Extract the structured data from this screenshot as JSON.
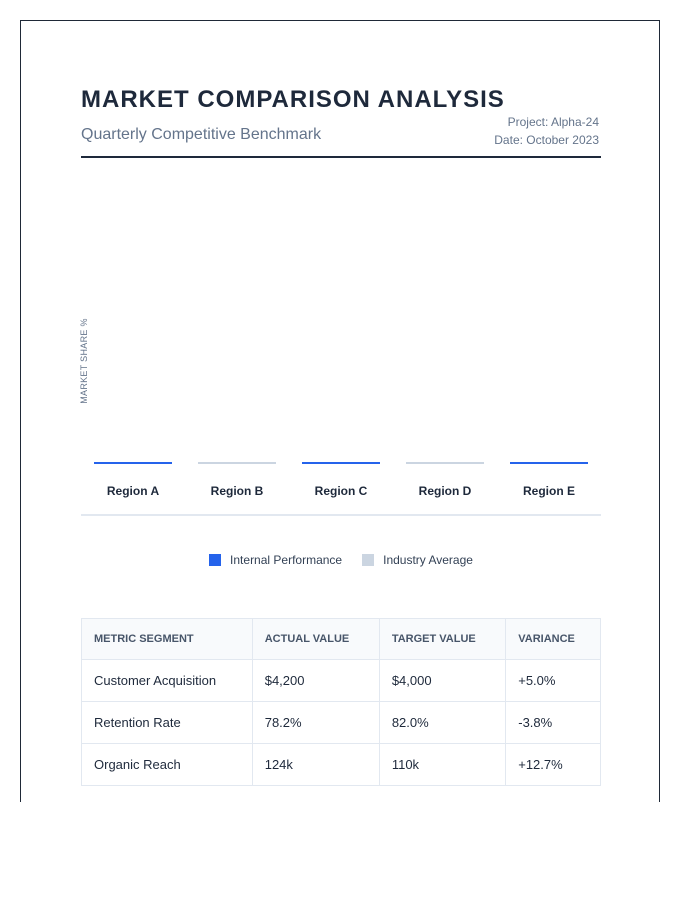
{
  "header": {
    "title": "MARKET COMPARISON ANALYSIS",
    "subtitle": "Quarterly Competitive Benchmark",
    "project": "Project: Alpha-24",
    "date": "Date: October 2023"
  },
  "colors": {
    "internal": "#2563eb",
    "industry": "#cbd5e1",
    "positive": "#059669",
    "negative": "#dc2626"
  },
  "chart_data": {
    "type": "bar",
    "ylabel": "MARKET SHARE %",
    "categories": [
      "Region A",
      "Region B",
      "Region C",
      "Region D",
      "Region E"
    ],
    "series": [
      {
        "name": "Internal Performance",
        "values": [
          0,
          null,
          0,
          null,
          0
        ]
      },
      {
        "name": "Industry Average",
        "values": [
          null,
          0,
          null,
          0,
          null
        ]
      }
    ],
    "grid": false,
    "legend_position": "bottom"
  },
  "table": {
    "headers": [
      "METRIC SEGMENT",
      "ACTUAL VALUE",
      "TARGET VALUE",
      "VARIANCE"
    ],
    "rows": [
      [
        "Customer Acquisition",
        "$4,200",
        "$4,000",
        "+5.0%"
      ],
      [
        "Retention Rate",
        "78.2%",
        "82.0%",
        "-3.8%"
      ],
      [
        "Organic Reach",
        "124k",
        "110k",
        "+12.7%"
      ]
    ]
  }
}
